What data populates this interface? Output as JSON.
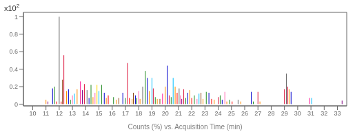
{
  "chart_data": {
    "type": "stem",
    "xlabel": "Counts (%) vs. Acquisition Time (min)",
    "annotations": [
      "x10",
      "2"
    ],
    "grid": false,
    "xlim": [
      9.3,
      33.7
    ],
    "ylim": [
      -0.02,
      1.05
    ],
    "yticks": [
      0,
      0.2,
      0.4,
      0.6,
      0.8,
      1
    ],
    "xticks": [
      10,
      11,
      12,
      13,
      14,
      15,
      16,
      17,
      18,
      19,
      20,
      21,
      22,
      23,
      24,
      25,
      26,
      27,
      28,
      29,
      30,
      31,
      32,
      33
    ],
    "x": [
      11.0,
      11.15,
      11.5,
      11.65,
      11.8,
      12.0,
      12.15,
      12.25,
      12.35,
      12.55,
      12.7,
      12.85,
      13.0,
      13.15,
      13.35,
      13.6,
      13.75,
      13.9,
      14.1,
      14.25,
      14.4,
      14.55,
      14.7,
      14.85,
      15.0,
      15.2,
      15.4,
      15.55,
      15.7,
      16.1,
      16.3,
      16.5,
      16.8,
      17.0,
      17.15,
      17.3,
      17.5,
      17.6,
      17.75,
      17.85,
      18.0,
      18.1,
      18.3,
      18.5,
      18.65,
      18.8,
      19.0,
      19.1,
      19.25,
      19.4,
      19.6,
      19.8,
      20.0,
      20.15,
      20.3,
      20.45,
      20.6,
      20.75,
      20.9,
      21.05,
      21.15,
      21.25,
      21.4,
      21.55,
      21.7,
      21.85,
      22.0,
      22.2,
      22.4,
      22.55,
      22.7,
      22.85,
      23.1,
      23.3,
      23.5,
      23.7,
      24.0,
      24.15,
      24.3,
      24.5,
      24.65,
      24.85,
      25.05,
      25.5,
      25.7,
      26.5,
      26.65,
      27.0,
      27.15,
      29.0,
      29.15,
      29.25,
      29.35,
      29.5,
      30.9,
      31.05,
      33.35
    ],
    "values": [
      0.05,
      0.03,
      0.18,
      0.2,
      0.03,
      1.0,
      0.03,
      0.28,
      0.56,
      0.15,
      0.17,
      0.05,
      0.1,
      0.12,
      0.17,
      0.26,
      0.16,
      0.23,
      0.16,
      0.07,
      0.22,
      0.08,
      0.13,
      0.22,
      0.15,
      0.22,
      0.13,
      0.07,
      0.1,
      0.08,
      0.05,
      0.07,
      0.13,
      0.07,
      0.47,
      0.07,
      0.06,
      0.13,
      0.1,
      0.07,
      0.15,
      0.06,
      0.2,
      0.38,
      0.3,
      0.15,
      0.3,
      0.18,
      0.08,
      0.06,
      0.06,
      0.12,
      0.2,
      0.44,
      0.1,
      0.08,
      0.3,
      0.2,
      0.13,
      0.18,
      0.1,
      0.06,
      0.17,
      0.07,
      0.13,
      0.16,
      0.07,
      0.1,
      0.06,
      0.12,
      0.13,
      0.06,
      0.14,
      0.13,
      0.06,
      0.05,
      0.08,
      0.1,
      0.05,
      0.14,
      0.03,
      0.05,
      0.03,
      0.05,
      0.03,
      0.14,
      0.03,
      0.14,
      0.03,
      0.17,
      0.35,
      0.2,
      0.17,
      0.14,
      0.07,
      0.07,
      0.04
    ],
    "colors": [
      "#ff8c00",
      "#800080",
      "#0000cd",
      "#228b22",
      "#ff0000",
      "#696969",
      "#ff0000",
      "#8b4513",
      "#dc143c",
      "#ff8c00",
      "#0000cd",
      "#228b22",
      "#ff69b4",
      "#00bfff",
      "#ff8c00",
      "#ff1493",
      "#800080",
      "#dc143c",
      "#696969",
      "#0000cd",
      "#228b22",
      "#ff8c00",
      "#ff69b4",
      "#ffd700",
      "#00bfff",
      "#228b22",
      "#0000cd",
      "#ff8c00",
      "#ff0000",
      "#228b22",
      "#ff8c00",
      "#8b4513",
      "#0000cd",
      "#228b22",
      "#dc143c",
      "#ff0000",
      "#ff8c00",
      "#8b4513",
      "#0000cd",
      "#228b22",
      "#ff69b4",
      "#ff8c00",
      "#696969",
      "#228b22",
      "#0000cd",
      "#ff8c00",
      "#00bfff",
      "#dc143c",
      "#228b22",
      "#ff8c00",
      "#8b4513",
      "#ff1493",
      "#ff8c00",
      "#0000cd",
      "#dc143c",
      "#228b22",
      "#00bfff",
      "#ff8c00",
      "#ff0000",
      "#696969",
      "#ff69b4",
      "#800080",
      "#dc143c",
      "#228b22",
      "#0000cd",
      "#ff8c00",
      "#ff0000",
      "#228b22",
      "#ff69b4",
      "#00bfff",
      "#8b4513",
      "#ff8c00",
      "#228b22",
      "#0000cd",
      "#ff0000",
      "#ff8c00",
      "#dc143c",
      "#228b22",
      "#0000cd",
      "#ff69b4",
      "#ff8c00",
      "#228b22",
      "#ff0000",
      "#696969",
      "#ff8c00",
      "#0000cd",
      "#228b22",
      "#dc143c",
      "#ff8c00",
      "#dc143c",
      "#696969",
      "#dc143c",
      "#ff8c00",
      "#0000cd",
      "#ff1493",
      "#00bfff",
      "#800080"
    ]
  }
}
